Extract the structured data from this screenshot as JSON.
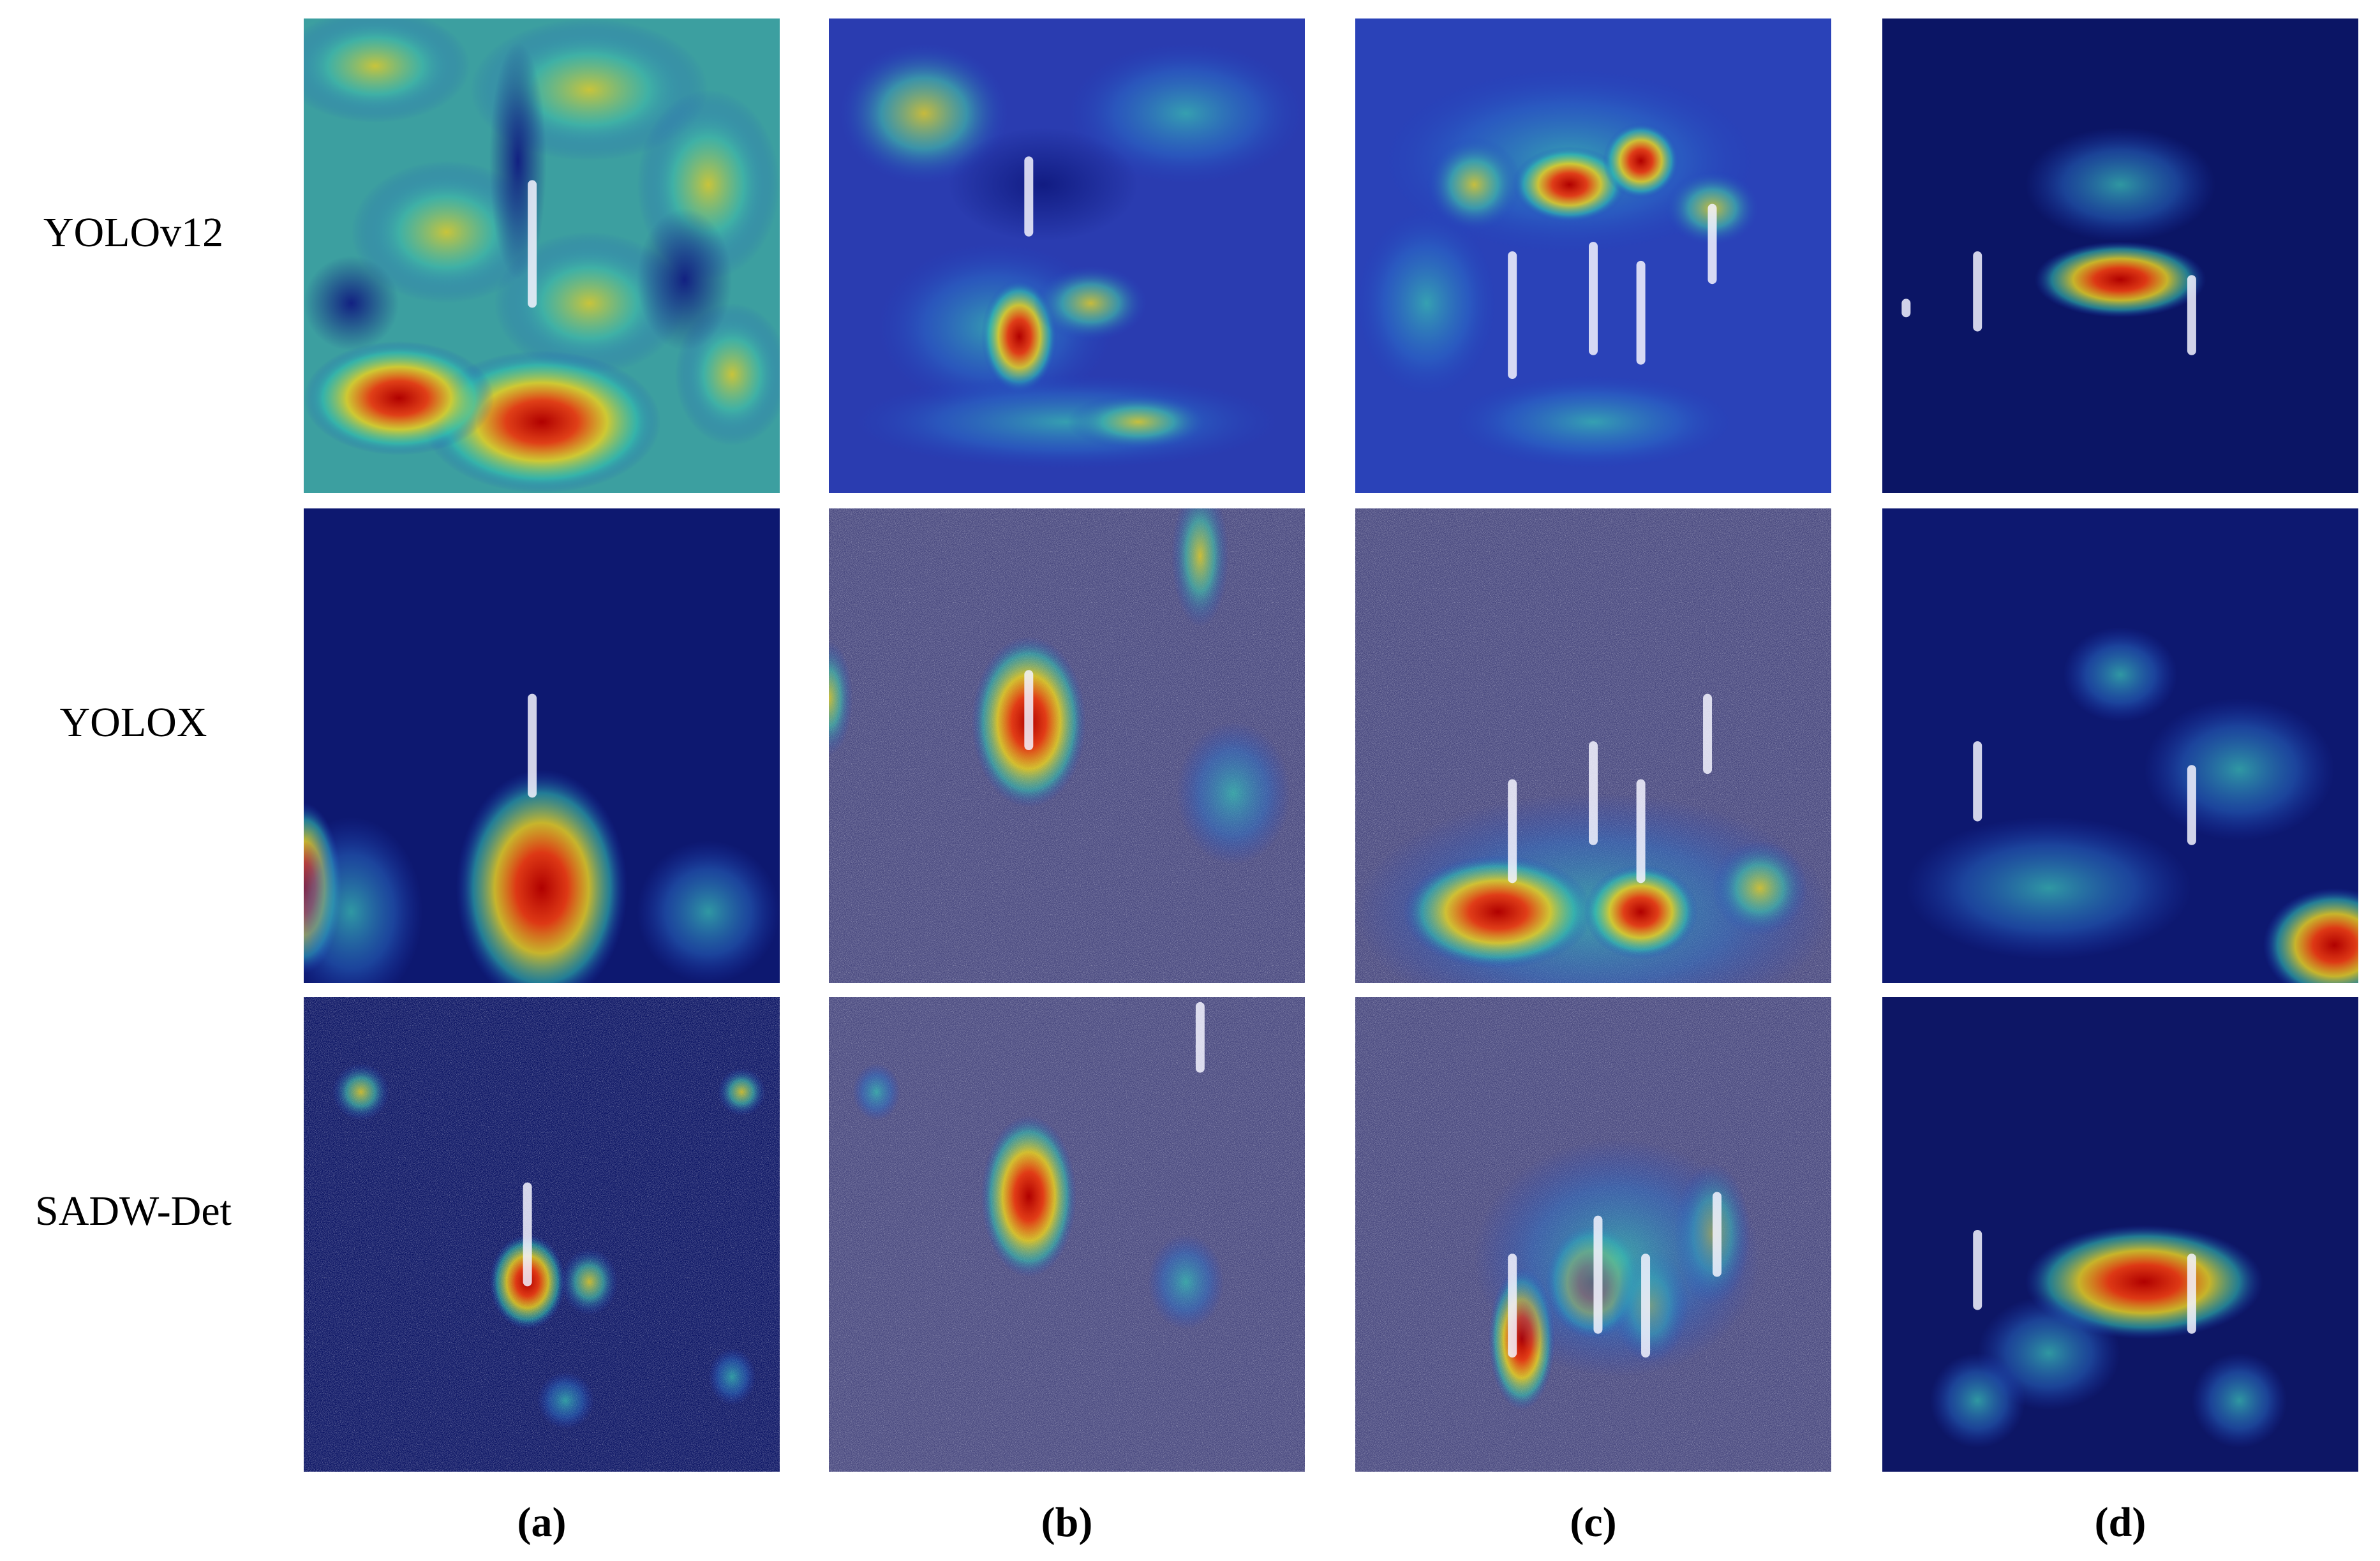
{
  "row_labels": [
    "YOLOv12",
    "YOLOX",
    "SADW-Det"
  ],
  "column_labels": [
    "(a)",
    "(b)",
    "(c)",
    "(d)"
  ]
}
